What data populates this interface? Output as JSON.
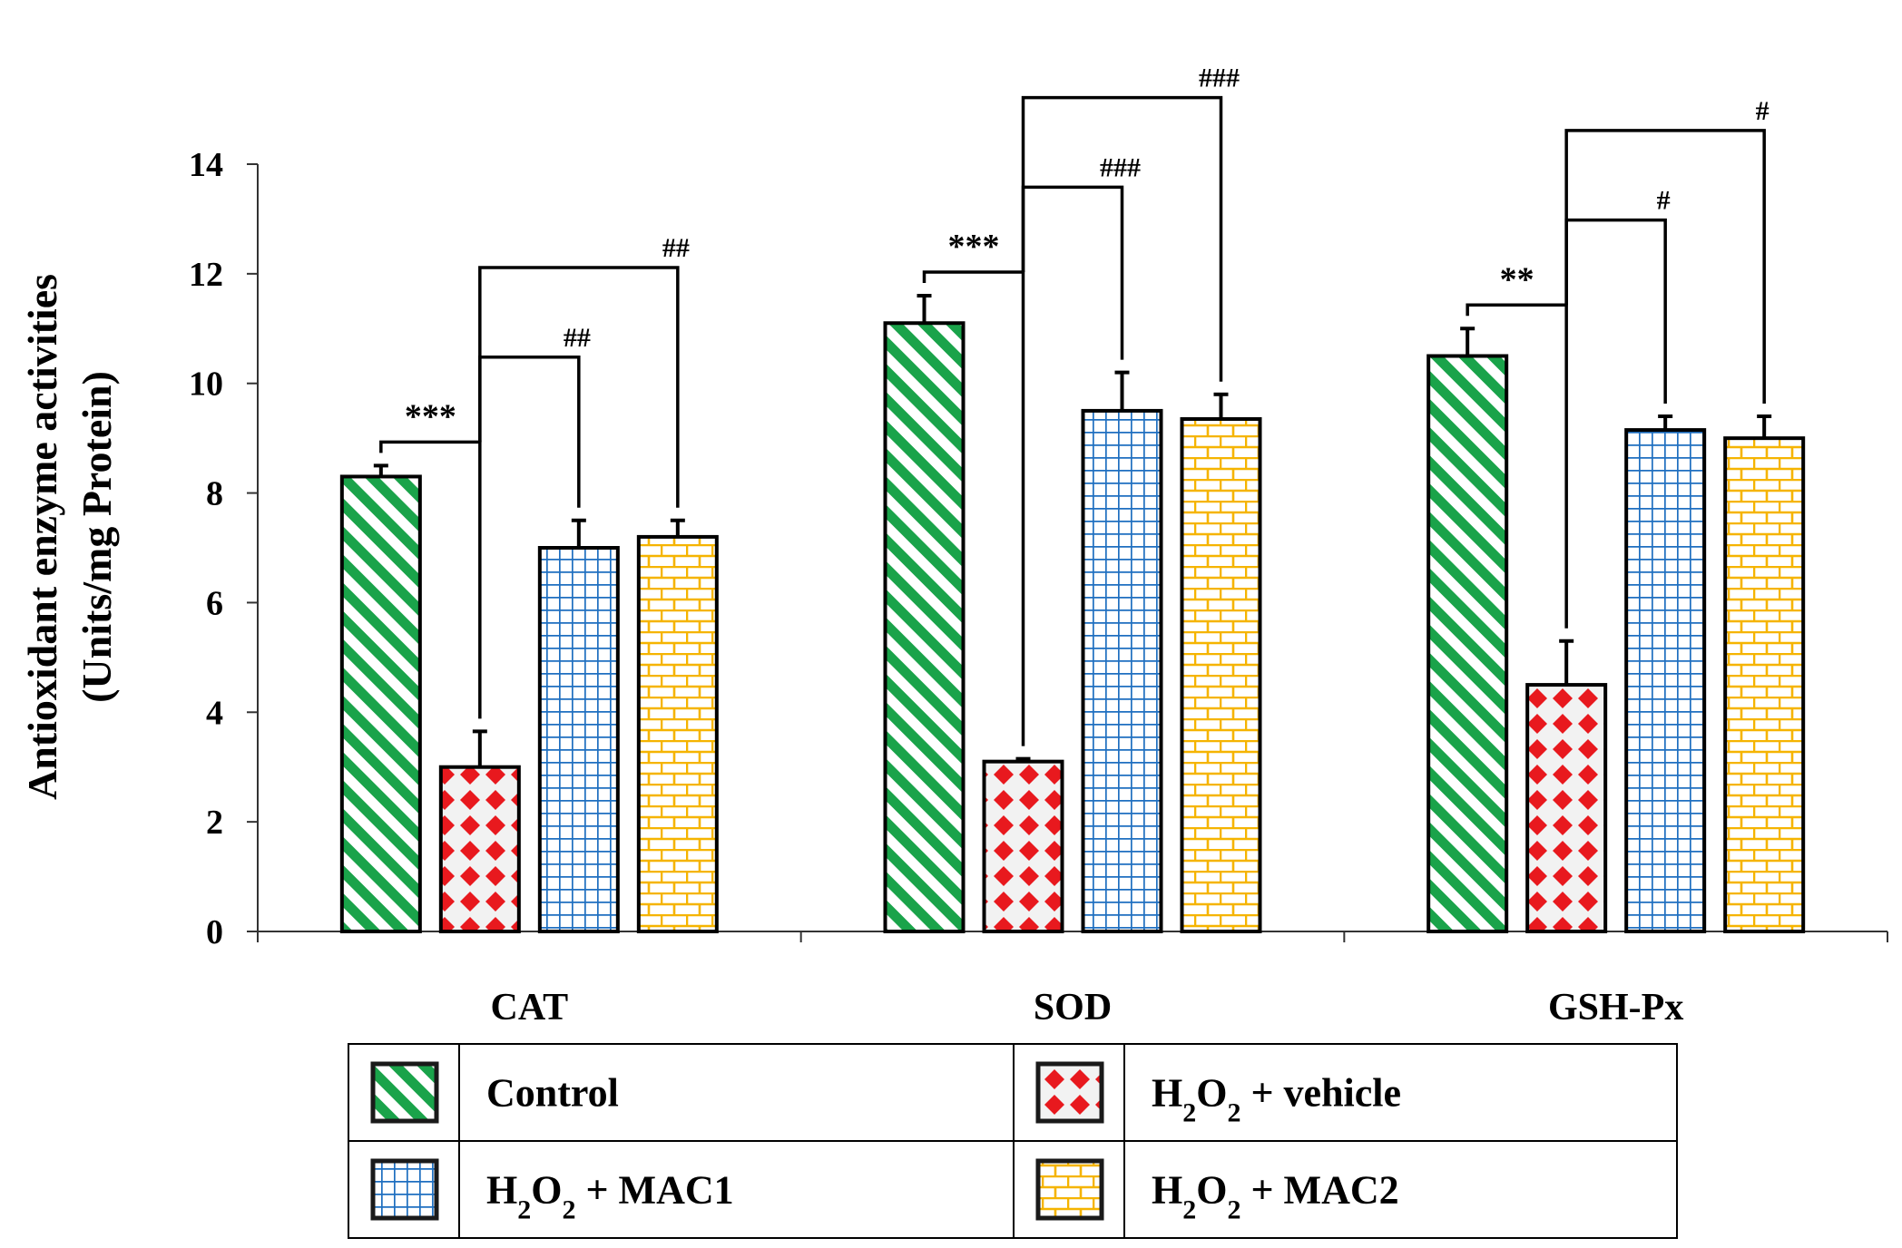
{
  "chart_data": {
    "type": "bar",
    "title": "",
    "xlabel": "",
    "ylabel": [
      "Antioxidant enzyme activities",
      "(Units/mg Protein)"
    ],
    "ylim": [
      0,
      14
    ],
    "yticks": [
      0,
      2,
      4,
      6,
      8,
      10,
      12,
      14
    ],
    "categories": [
      "CAT",
      "SOD",
      "GSH-Px"
    ],
    "series": [
      {
        "name": "Control",
        "pattern": "diagonal-stripes",
        "color": "#1aa34a",
        "values": [
          8.3,
          11.1,
          10.5
        ],
        "errors": [
          0.2,
          0.5,
          0.5
        ]
      },
      {
        "name": "H2O2 + vehicle",
        "pattern": "diamond-dots",
        "color": "#e8191e",
        "values": [
          3.0,
          3.1,
          4.5
        ],
        "errors": [
          0.65,
          0.05,
          0.8
        ]
      },
      {
        "name": "H2O2 + MAC1",
        "pattern": "grid",
        "color": "#1f6fc0",
        "values": [
          7.0,
          9.5,
          9.15
        ],
        "errors": [
          0.5,
          0.7,
          0.25
        ]
      },
      {
        "name": "H2O2 + MAC2",
        "pattern": "brick",
        "color": "#f5b400",
        "values": [
          7.2,
          9.35,
          9.0
        ],
        "errors": [
          0.3,
          0.45,
          0.4
        ]
      }
    ],
    "significance": [
      {
        "category": "CAT",
        "compare": [
          "Control",
          "H2O2 + vehicle"
        ],
        "label": "***"
      },
      {
        "category": "CAT",
        "compare": [
          "H2O2 + vehicle",
          "H2O2 + MAC1"
        ],
        "label": "##"
      },
      {
        "category": "CAT",
        "compare": [
          "H2O2 + vehicle",
          "H2O2 + MAC2"
        ],
        "label": "##"
      },
      {
        "category": "SOD",
        "compare": [
          "Control",
          "H2O2 + vehicle"
        ],
        "label": "***"
      },
      {
        "category": "SOD",
        "compare": [
          "H2O2 + vehicle",
          "H2O2 + MAC1"
        ],
        "label": "###"
      },
      {
        "category": "SOD",
        "compare": [
          "H2O2 + vehicle",
          "H2O2 + MAC2"
        ],
        "label": "###"
      },
      {
        "category": "GSH-Px",
        "compare": [
          "Control",
          "H2O2 + vehicle"
        ],
        "label": "**"
      },
      {
        "category": "GSH-Px",
        "compare": [
          "H2O2 + vehicle",
          "H2O2 + MAC1"
        ],
        "label": "#"
      },
      {
        "category": "GSH-Px",
        "compare": [
          "H2O2 + vehicle",
          "H2O2 + MAC2"
        ],
        "label": "#"
      }
    ],
    "legend": {
      "placement": "bottom",
      "entries": [
        {
          "series": "Control",
          "label": "Control"
        },
        {
          "series": "H2O2 + vehicle",
          "label": "H2O2 + vehicle"
        },
        {
          "series": "H2O2 + MAC1",
          "label": "H2O2 + MAC1"
        },
        {
          "series": "H2O2 + MAC2",
          "label": "H2O2 + MAC2"
        }
      ]
    },
    "grid": false
  }
}
